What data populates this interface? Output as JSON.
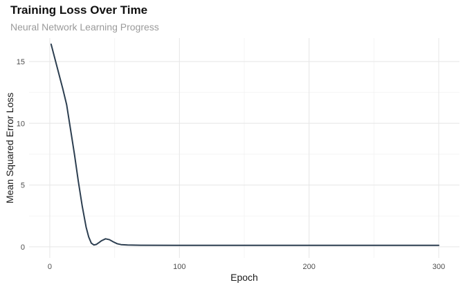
{
  "chart_data": {
    "type": "line",
    "title": "Training Loss Over Time",
    "subtitle": "Neural Network Learning Progress",
    "xlabel": "Epoch",
    "ylabel": "Mean Squared Error Loss",
    "xlim": [
      -16,
      316
    ],
    "ylim": [
      -0.9,
      16.9
    ],
    "x_ticks": [
      0,
      100,
      200,
      300
    ],
    "y_ticks": [
      0,
      5,
      10,
      15
    ],
    "grid": true,
    "line_color": "#2c3e50",
    "series": [
      {
        "x": [
          1,
          3,
          5,
          8,
          10,
          13,
          16,
          19,
          22,
          25,
          28,
          30,
          32,
          34,
          36,
          38,
          40,
          43,
          46,
          49,
          52,
          55,
          60,
          70,
          100,
          150,
          200,
          250,
          300
        ],
        "y": [
          16.4,
          15.6,
          14.8,
          13.6,
          12.8,
          11.5,
          9.5,
          7.5,
          5.3,
          3.3,
          1.6,
          0.8,
          0.3,
          0.15,
          0.2,
          0.35,
          0.5,
          0.65,
          0.58,
          0.4,
          0.25,
          0.18,
          0.15,
          0.13,
          0.12,
          0.12,
          0.12,
          0.12,
          0.12
        ]
      }
    ]
  }
}
